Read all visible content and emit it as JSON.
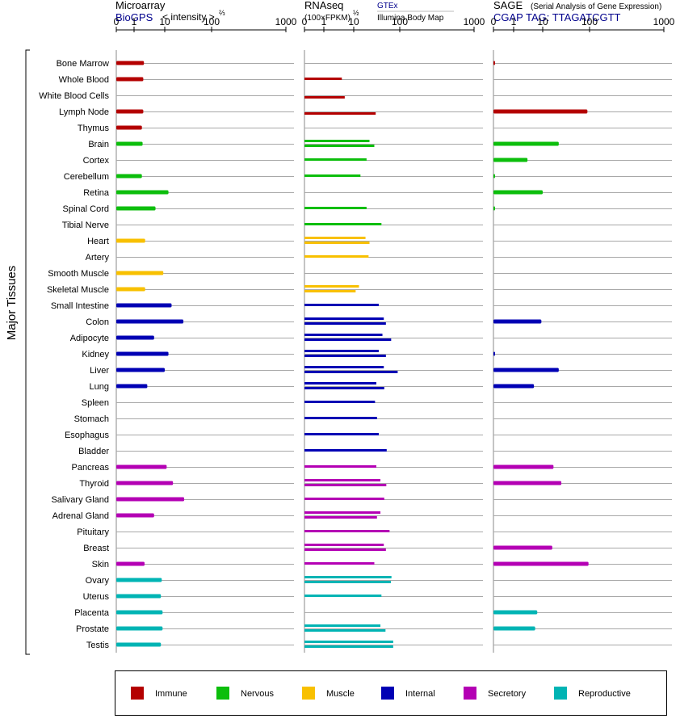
{
  "colors": {
    "Immune": "#b40000",
    "Nervous": "#0cbe0c",
    "Muscle": "#f8c000",
    "Internal": "#0000b4",
    "Secretory": "#b400b4",
    "Reproductive": "#00b4b4",
    "header_blue": "#00008c"
  },
  "chart_data": {
    "type": "bar",
    "y_axis_title": "Major Tissues",
    "panels": {
      "microarray": {
        "title": "Microarray",
        "subtitle": "BioGPS",
        "note": "< intensity >",
        "note_exp": "⅔",
        "ticks": [
          "0",
          "1",
          "10",
          "100",
          "1000"
        ]
      },
      "rnaseq": {
        "title": "RNAseq",
        "sub1": "(100×FPKM)",
        "sub1_exp": "½",
        "sub2": "GTEx",
        "sub3": "Illumina Body Map",
        "ticks": [
          "0",
          "1",
          "10",
          "100",
          "1000"
        ]
      },
      "sage": {
        "title": "SAGE",
        "note": "(Serial Analysis of Gene Expression)",
        "subtitle": "CGAP TAG: TTAGATCGTT",
        "ticks": [
          "0",
          "1",
          "10",
          "100",
          "1000"
        ]
      }
    },
    "legend": [
      "Immune",
      "Nervous",
      "Muscle",
      "Internal",
      "Secretory",
      "Reproductive"
    ],
    "tissues": [
      {
        "name": "Bone Marrow",
        "system": "Immune",
        "microarray": 2.1,
        "gtex": null,
        "ibm": null,
        "sage": 0.05
      },
      {
        "name": "Whole Blood",
        "system": "Immune",
        "microarray": 2.0,
        "gtex": 4,
        "ibm": null,
        "sage": null
      },
      {
        "name": "White Blood Cells",
        "system": "Immune",
        "microarray": null,
        "gtex": null,
        "ibm": 5,
        "sage": null
      },
      {
        "name": "Lymph Node",
        "system": "Immune",
        "microarray": 2.0,
        "gtex": null,
        "ibm": 30,
        "sage": 90
      },
      {
        "name": "Thymus",
        "system": "Immune",
        "microarray": 1.8,
        "gtex": null,
        "ibm": null,
        "sage": null
      },
      {
        "name": "Brain",
        "system": "Nervous",
        "microarray": 1.9,
        "gtex": 22,
        "ibm": 28,
        "sage": 22
      },
      {
        "name": "Cortex",
        "system": "Nervous",
        "microarray": null,
        "gtex": 19,
        "ibm": null,
        "sage": 3
      },
      {
        "name": "Cerebellum",
        "system": "Nervous",
        "microarray": 1.8,
        "gtex": 14,
        "ibm": null,
        "sage": 0.05
      },
      {
        "name": "Retina",
        "system": "Nervous",
        "microarray": 12,
        "gtex": null,
        "ibm": null,
        "sage": 10
      },
      {
        "name": "Spinal Cord",
        "system": "Nervous",
        "microarray": 5,
        "gtex": 19,
        "ibm": null,
        "sage": 0.05
      },
      {
        "name": "Tibial Nerve",
        "system": "Nervous",
        "microarray": null,
        "gtex": 40,
        "ibm": null,
        "sage": null
      },
      {
        "name": "Heart",
        "system": "Muscle",
        "microarray": 2.3,
        "gtex": 18,
        "ibm": 22,
        "sage": null
      },
      {
        "name": "Artery",
        "system": "Muscle",
        "microarray": null,
        "gtex": 21,
        "ibm": null,
        "sage": null
      },
      {
        "name": "Smooth Muscle",
        "system": "Muscle",
        "microarray": 9,
        "gtex": null,
        "ibm": null,
        "sage": null
      },
      {
        "name": "Skeletal Muscle",
        "system": "Muscle",
        "microarray": 2.3,
        "gtex": 13,
        "ibm": 11,
        "sage": null
      },
      {
        "name": "Small Intestine",
        "system": "Internal",
        "microarray": 14,
        "gtex": 35,
        "ibm": null,
        "sage": null
      },
      {
        "name": "Colon",
        "system": "Internal",
        "microarray": 25,
        "gtex": 45,
        "ibm": 50,
        "sage": 9
      },
      {
        "name": "Adipocyte",
        "system": "Internal",
        "microarray": 4.5,
        "gtex": 42,
        "ibm": 65,
        "sage": null
      },
      {
        "name": "Kidney",
        "system": "Internal",
        "microarray": 12,
        "gtex": 35,
        "ibm": 50,
        "sage": 0.05
      },
      {
        "name": "Liver",
        "system": "Internal",
        "microarray": 10,
        "gtex": 45,
        "ibm": 90,
        "sage": 22
      },
      {
        "name": "Lung",
        "system": "Internal",
        "microarray": 2.7,
        "gtex": 31,
        "ibm": 46,
        "sage": 5
      },
      {
        "name": "Spleen",
        "system": "Internal",
        "microarray": null,
        "gtex": 29,
        "ibm": null,
        "sage": null
      },
      {
        "name": "Stomach",
        "system": "Internal",
        "microarray": null,
        "gtex": 32,
        "ibm": null,
        "sage": null
      },
      {
        "name": "Esophagus",
        "system": "Internal",
        "microarray": null,
        "gtex": 35,
        "ibm": null,
        "sage": null
      },
      {
        "name": "Bladder",
        "system": "Internal",
        "microarray": null,
        "gtex": 52,
        "ibm": null,
        "sage": null
      },
      {
        "name": "Pancreas",
        "system": "Secretory",
        "microarray": 11,
        "gtex": 31,
        "ibm": null,
        "sage": 17
      },
      {
        "name": "Thyroid",
        "system": "Secretory",
        "microarray": 15,
        "gtex": 38,
        "ibm": 51,
        "sage": 25
      },
      {
        "name": "Salivary Gland",
        "system": "Secretory",
        "microarray": 26,
        "gtex": 46,
        "ibm": null,
        "sage": null
      },
      {
        "name": "Adrenal Gland",
        "system": "Secretory",
        "microarray": 4.5,
        "gtex": 38,
        "ibm": 32,
        "sage": null
      },
      {
        "name": "Pituitary",
        "system": "Secretory",
        "microarray": null,
        "gtex": 60,
        "ibm": null,
        "sage": null
      },
      {
        "name": "Breast",
        "system": "Secretory",
        "microarray": null,
        "gtex": 45,
        "ibm": 50,
        "sage": 16
      },
      {
        "name": "Skin",
        "system": "Secretory",
        "microarray": 2.2,
        "gtex": 28,
        "ibm": null,
        "sage": 95
      },
      {
        "name": "Ovary",
        "system": "Reproductive",
        "microarray": 8,
        "gtex": 66,
        "ibm": 64,
        "sage": null
      },
      {
        "name": "Uterus",
        "system": "Reproductive",
        "microarray": 7.5,
        "gtex": 40,
        "ibm": null,
        "sage": null
      },
      {
        "name": "Placenta",
        "system": "Reproductive",
        "microarray": 8.5,
        "gtex": null,
        "ibm": null,
        "sage": 6.5
      },
      {
        "name": "Prostate",
        "system": "Reproductive",
        "microarray": 8.5,
        "gtex": 38,
        "ibm": 49,
        "sage": 5.5
      },
      {
        "name": "Testis",
        "system": "Reproductive",
        "microarray": 7.5,
        "gtex": 72,
        "ibm": 72,
        "sage": null
      }
    ]
  }
}
